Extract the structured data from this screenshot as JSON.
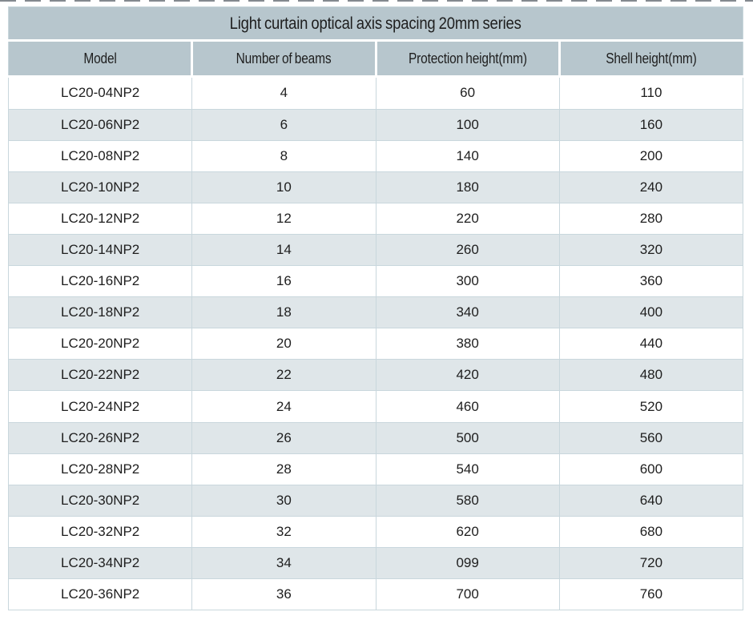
{
  "title": "Light curtain optical axis spacing 20mm series",
  "table": {
    "headers": [
      "Model",
      "Number of beams",
      "Protection height(mm)",
      "Shell height(mm)"
    ],
    "rows": [
      [
        "LC20-04NP2",
        "4",
        "60",
        "110"
      ],
      [
        "LC20-06NP2",
        "6",
        "100",
        "160"
      ],
      [
        "LC20-08NP2",
        "8",
        "140",
        "200"
      ],
      [
        "LC20-10NP2",
        "10",
        "180",
        "240"
      ],
      [
        "LC20-12NP2",
        "12",
        "220",
        "280"
      ],
      [
        "LC20-14NP2",
        "14",
        "260",
        "320"
      ],
      [
        "LC20-16NP2",
        "16",
        "300",
        "360"
      ],
      [
        "LC20-18NP2",
        "18",
        "340",
        "400"
      ],
      [
        "LC20-20NP2",
        "20",
        "380",
        "440"
      ],
      [
        "LC20-22NP2",
        "22",
        "420",
        "480"
      ],
      [
        "LC20-24NP2",
        "24",
        "460",
        "520"
      ],
      [
        "LC20-26NP2",
        "26",
        "500",
        "560"
      ],
      [
        "LC20-28NP2",
        "28",
        "540",
        "600"
      ],
      [
        "LC20-30NP2",
        "30",
        "580",
        "640"
      ],
      [
        "LC20-32NP2",
        "32",
        "620",
        "680"
      ],
      [
        "LC20-34NP2",
        "34",
        "099",
        "720"
      ],
      [
        "LC20-36NP2",
        "36",
        "700",
        "760"
      ]
    ],
    "column_names": [
      "model-cell",
      "beams-cell",
      "protection-height-cell",
      "shell-height-cell"
    ]
  },
  "colors": {
    "header_bg": "#b7c6cd",
    "row_bg": "#ffffff",
    "row_alt_bg": "#dfe6e9",
    "border": "#c9d7dd",
    "text": "#1e1e1e",
    "dash_color": "#6d747b"
  }
}
